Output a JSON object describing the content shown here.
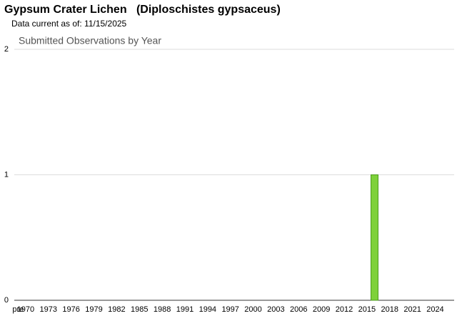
{
  "header": {
    "title": "Gypsum Crater Lichen   (Diploschistes gypsaceus)",
    "subtitle": "Data current as of: 11/15/2025"
  },
  "chart_data": {
    "type": "bar",
    "title": "Submitted Observations by Year",
    "categories": [
      "pre",
      "1970",
      null,
      null,
      "1973",
      null,
      null,
      "1976",
      null,
      null,
      "1979",
      null,
      null,
      "1982",
      null,
      null,
      "1985",
      null,
      null,
      "1988",
      null,
      null,
      "1991",
      null,
      null,
      "1994",
      null,
      null,
      "1997",
      null,
      null,
      "2000",
      null,
      null,
      "2003",
      null,
      null,
      "2006",
      null,
      null,
      "2009",
      null,
      null,
      "2012",
      null,
      null,
      "2015",
      null,
      null,
      "2018",
      null,
      null,
      "2021",
      null,
      null,
      "2024",
      null,
      null
    ],
    "values": [
      0,
      0,
      0,
      0,
      0,
      0,
      0,
      0,
      0,
      0,
      0,
      0,
      0,
      0,
      0,
      0,
      0,
      0,
      0,
      0,
      0,
      0,
      0,
      0,
      0,
      0,
      0,
      0,
      0,
      0,
      0,
      0,
      0,
      0,
      0,
      0,
      0,
      0,
      0,
      0,
      0,
      0,
      0,
      0,
      0,
      0,
      0,
      1,
      0,
      0,
      0,
      0,
      0,
      0,
      0,
      0,
      0,
      0
    ],
    "color": "#7ed13a",
    "ylim": [
      0,
      2
    ],
    "yticks": [
      0,
      1,
      2
    ],
    "grid": true
  }
}
